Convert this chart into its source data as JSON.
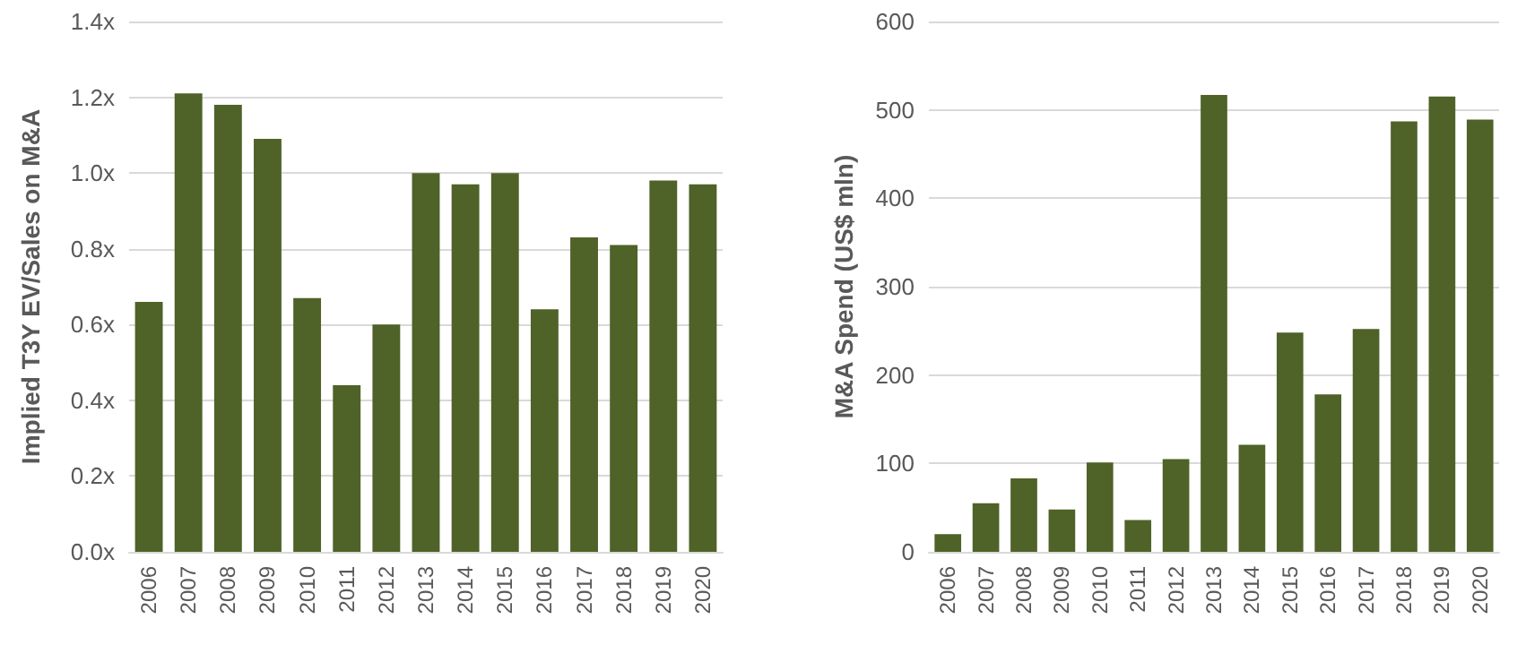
{
  "chart_data": [
    {
      "type": "bar",
      "ylabel": "Implied T3Y EV/Sales on M&A",
      "categories": [
        "2006",
        "2007",
        "2008",
        "2009",
        "2010",
        "2011",
        "2012",
        "2013",
        "2014",
        "2015",
        "2016",
        "2017",
        "2018",
        "2019",
        "2020"
      ],
      "values": [
        0.66,
        1.21,
        1.18,
        1.09,
        0.67,
        0.44,
        0.6,
        1.0,
        0.97,
        1.0,
        0.64,
        0.83,
        0.81,
        0.98,
        0.97
      ],
      "color": "#4f6228",
      "ylim": [
        0,
        1.4
      ],
      "yticks": [
        {
          "value": 0,
          "label": "0.0x"
        },
        {
          "value": 0.2,
          "label": "0.2x"
        },
        {
          "value": 0.4,
          "label": "0.4x"
        },
        {
          "value": 0.6,
          "label": "0.6x"
        },
        {
          "value": 0.8,
          "label": "0.8x"
        },
        {
          "value": 1.0,
          "label": "1.0x"
        },
        {
          "value": 1.2,
          "label": "1.2x"
        },
        {
          "value": 1.4,
          "label": "1.4x"
        }
      ],
      "grid": "y"
    },
    {
      "type": "bar",
      "ylabel": "M&A Spend (US$ mln)",
      "categories": [
        "2006",
        "2007",
        "2008",
        "2009",
        "2010",
        "2011",
        "2012",
        "2013",
        "2014",
        "2015",
        "2016",
        "2017",
        "2018",
        "2019",
        "2020"
      ],
      "values": [
        20,
        55,
        83,
        48,
        101,
        36,
        105,
        517,
        121,
        248,
        178,
        252,
        487,
        515,
        489
      ],
      "color": "#4f6228",
      "ylim": [
        0,
        600
      ],
      "yticks": [
        0,
        100,
        200,
        300,
        400,
        500,
        600
      ],
      "grid": "y"
    }
  ]
}
